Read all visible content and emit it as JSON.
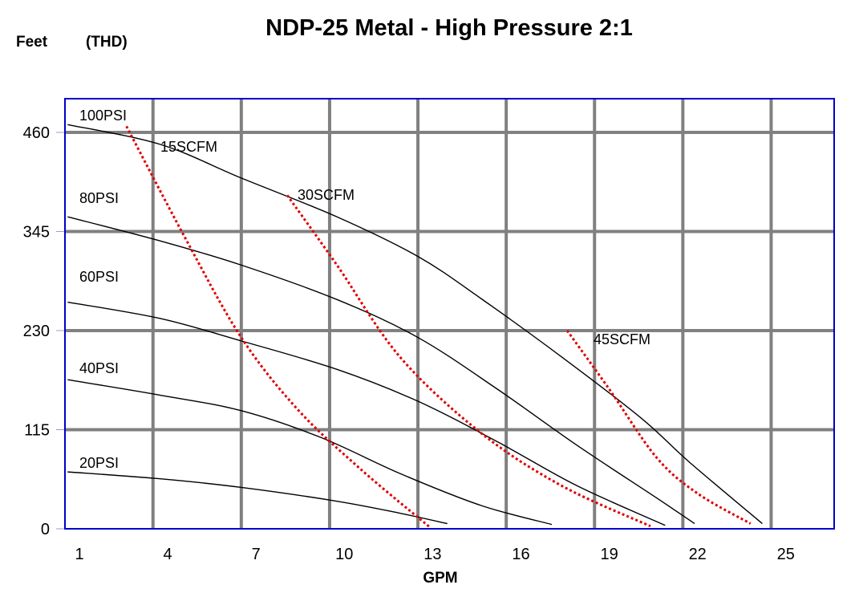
{
  "chart_data": {
    "type": "line",
    "title": "NDP-25 Metal - High Pressure 2:1",
    "ylabel": "Feet",
    "ylabel_secondary": "(THD)",
    "xlabel": "GPM",
    "x_ticks": [
      "1",
      "4",
      "7",
      "10",
      "13",
      "16",
      "19",
      "22",
      "25"
    ],
    "y_ticks": [
      "0",
      "115",
      "230",
      "345",
      "460"
    ],
    "xlim": [
      0.5,
      26.6
    ],
    "ylim": [
      0,
      499
    ],
    "grid": true,
    "colors": {
      "frame": "#0000cc",
      "grid": "#808080",
      "psi": "#000000",
      "scfm": "#e00000"
    },
    "series": [
      {
        "name": "100PSI",
        "kind": "pressure",
        "x": [
          0.6,
          3.75,
          6.5,
          9.75,
          12.5,
          14.65,
          17.4,
          20.1,
          21.7,
          24.2
        ],
        "y": [
          469,
          446,
          407,
          362,
          316,
          267,
          199,
          128,
          78,
          6
        ]
      },
      {
        "name": "80PSI",
        "kind": "pressure",
        "x": [
          0.6,
          3.75,
          6.5,
          9.75,
          12.5,
          15.2,
          17.9,
          20.6,
          21.9
        ],
        "y": [
          362,
          334,
          306,
          266,
          222,
          162,
          97,
          36,
          6
        ]
      },
      {
        "name": "60PSI",
        "kind": "pressure",
        "x": [
          0.6,
          3.75,
          6.5,
          9.75,
          12.5,
          15.2,
          17.9,
          20.9
        ],
        "y": [
          263,
          244,
          218,
          185,
          148,
          101,
          50,
          4
        ]
      },
      {
        "name": "40PSI",
        "kind": "pressure",
        "x": [
          0.6,
          3.75,
          6.5,
          9.2,
          11.9,
          14.65,
          17.05
        ],
        "y": [
          173,
          155,
          137,
          106,
          64,
          27,
          5
        ]
      },
      {
        "name": "20PSI",
        "kind": "pressure",
        "x": [
          0.6,
          3.75,
          6.5,
          9.75,
          11.9,
          13.5
        ],
        "y": [
          66,
          58,
          48,
          32,
          18,
          6
        ]
      },
      {
        "name": "15SCFM",
        "kind": "air",
        "x": [
          2.6,
          4.57,
          6.48,
          8.4,
          10.56,
          12.9
        ],
        "y": [
          467,
          339,
          223,
          139,
          69,
          2
        ]
      },
      {
        "name": "30SCFM",
        "kind": "air",
        "x": [
          8.06,
          9.75,
          11.9,
          14.65,
          17.38,
          20.4
        ],
        "y": [
          387,
          306,
          199,
          111,
          50,
          3
        ]
      },
      {
        "name": "45SCFM",
        "kind": "air",
        "x": [
          17.57,
          19.0,
          20.6,
          22.0,
          23.8
        ],
        "y": [
          230,
          162,
          83,
          41,
          6
        ]
      }
    ]
  }
}
